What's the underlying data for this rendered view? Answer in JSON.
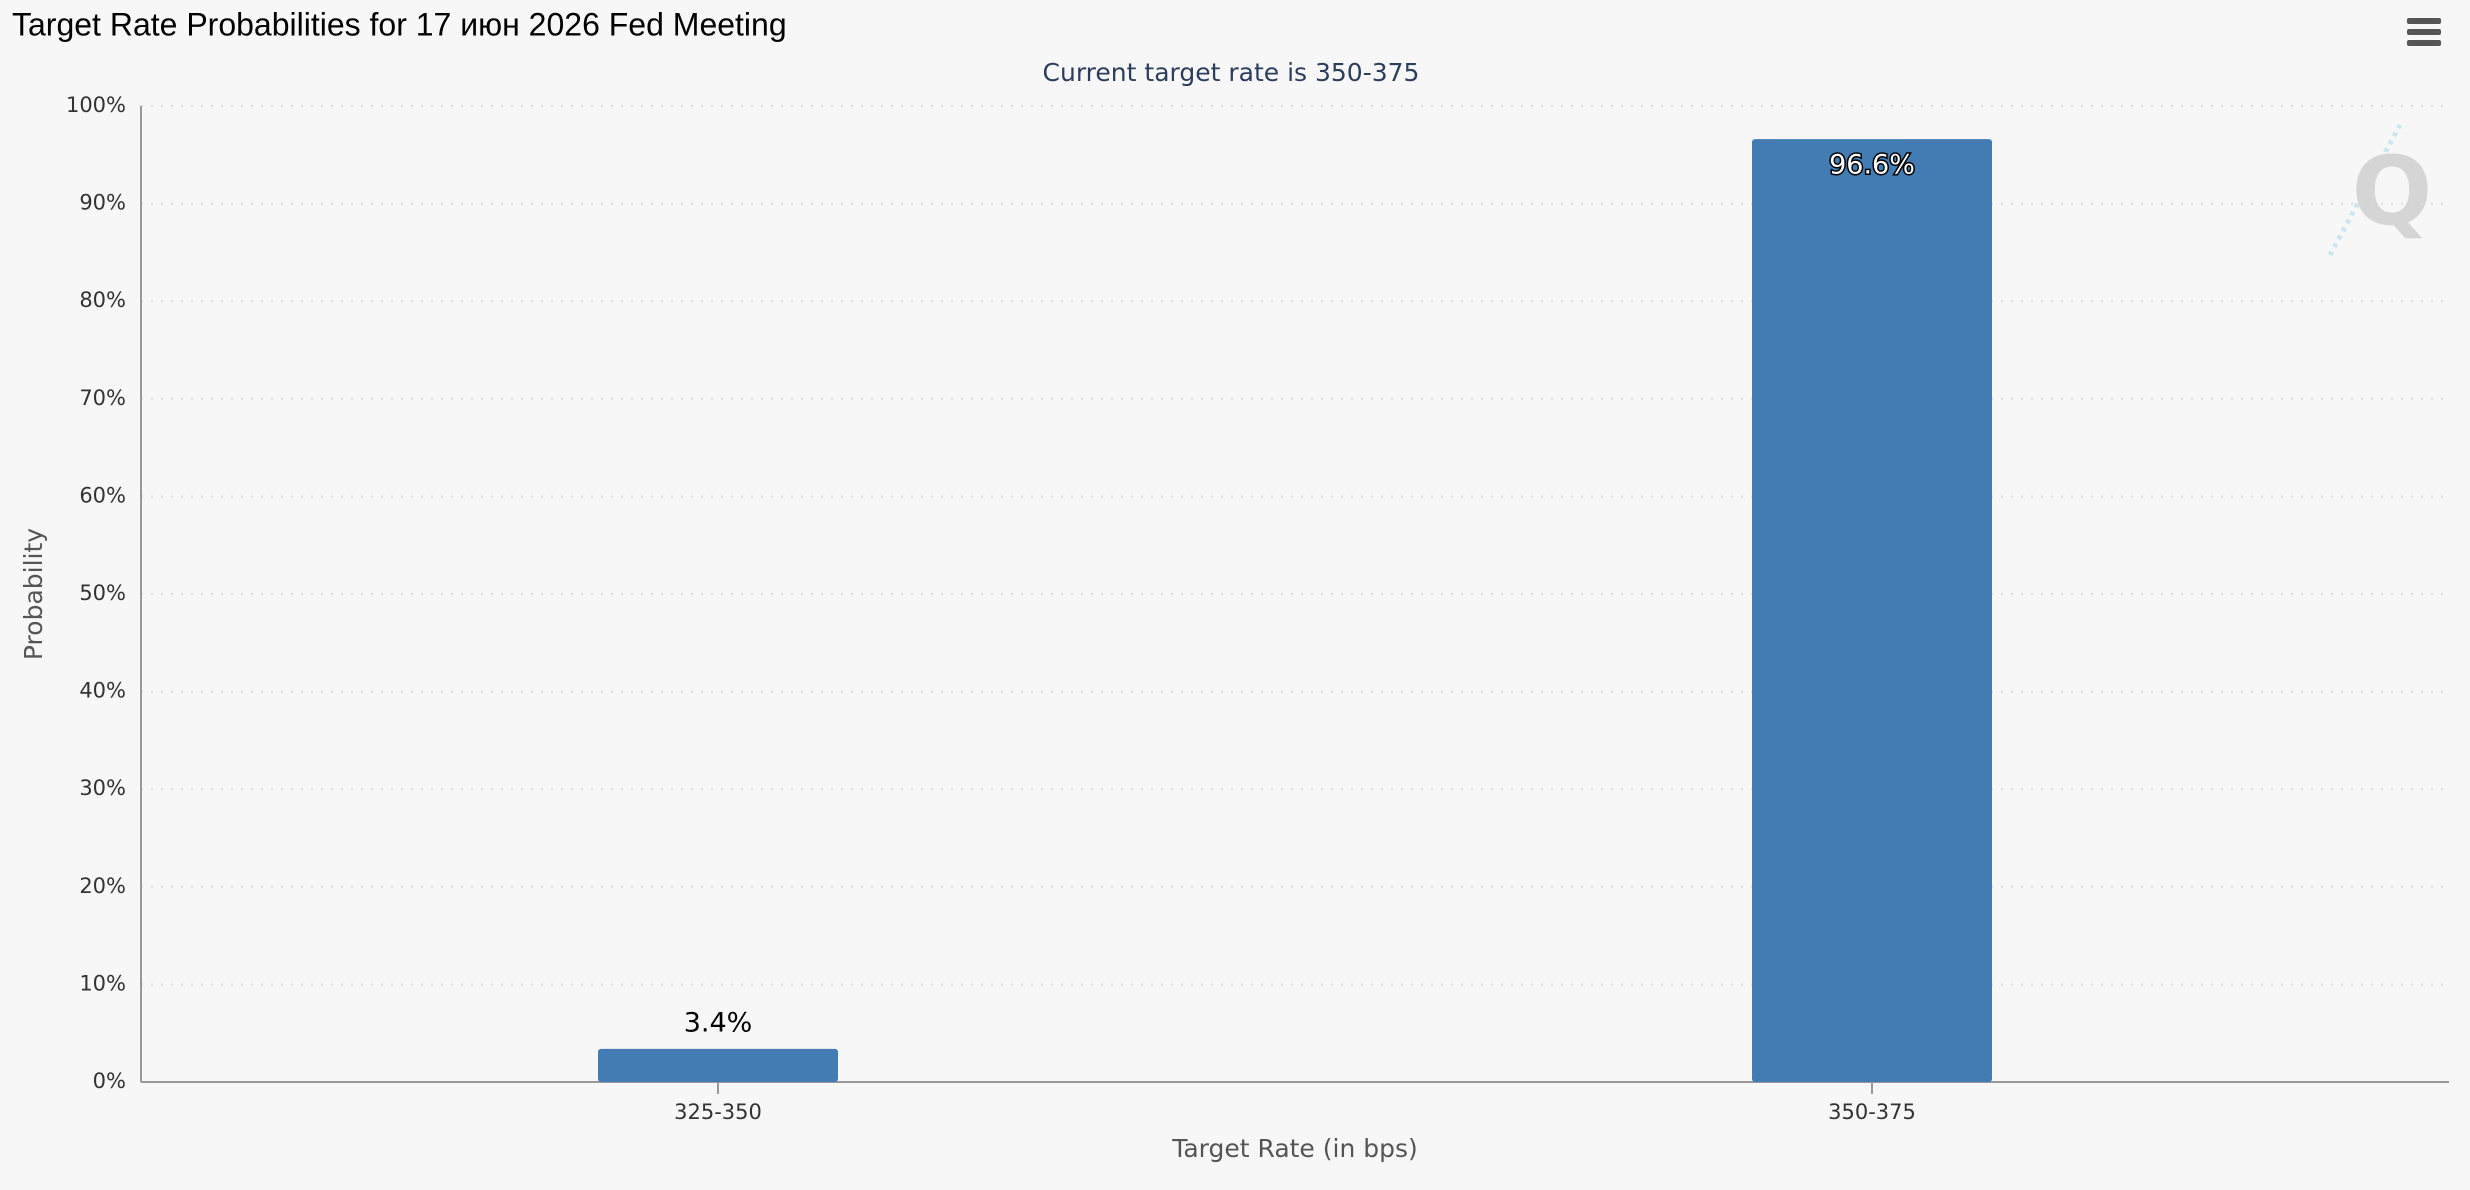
{
  "chart_data": {
    "type": "bar",
    "title": "Target Rate Probabilities for 17 июн 2026 Fed Meeting",
    "subtitle": "Current target rate is 350-375",
    "x_label": "Target Rate (in bps)",
    "y_label": "Probability",
    "categories": [
      "325-350",
      "350-375"
    ],
    "values": [
      3.4,
      96.6
    ],
    "value_labels": [
      "3.4%",
      "96.6%"
    ],
    "color": "#427cb3",
    "ylim": [
      0,
      100
    ],
    "yticks": [
      {
        "value": 0,
        "label": "0%"
      },
      {
        "value": 10,
        "label": "10%"
      },
      {
        "value": 20,
        "label": "20%"
      },
      {
        "value": 30,
        "label": "30%"
      },
      {
        "value": 40,
        "label": "40%"
      },
      {
        "value": 50,
        "label": "50%"
      },
      {
        "value": 60,
        "label": "60%"
      },
      {
        "value": 70,
        "label": "70%"
      },
      {
        "value": 80,
        "label": "80%"
      },
      {
        "value": 90,
        "label": "90%"
      },
      {
        "value": 100,
        "label": "100%"
      }
    ],
    "grid": true
  }
}
